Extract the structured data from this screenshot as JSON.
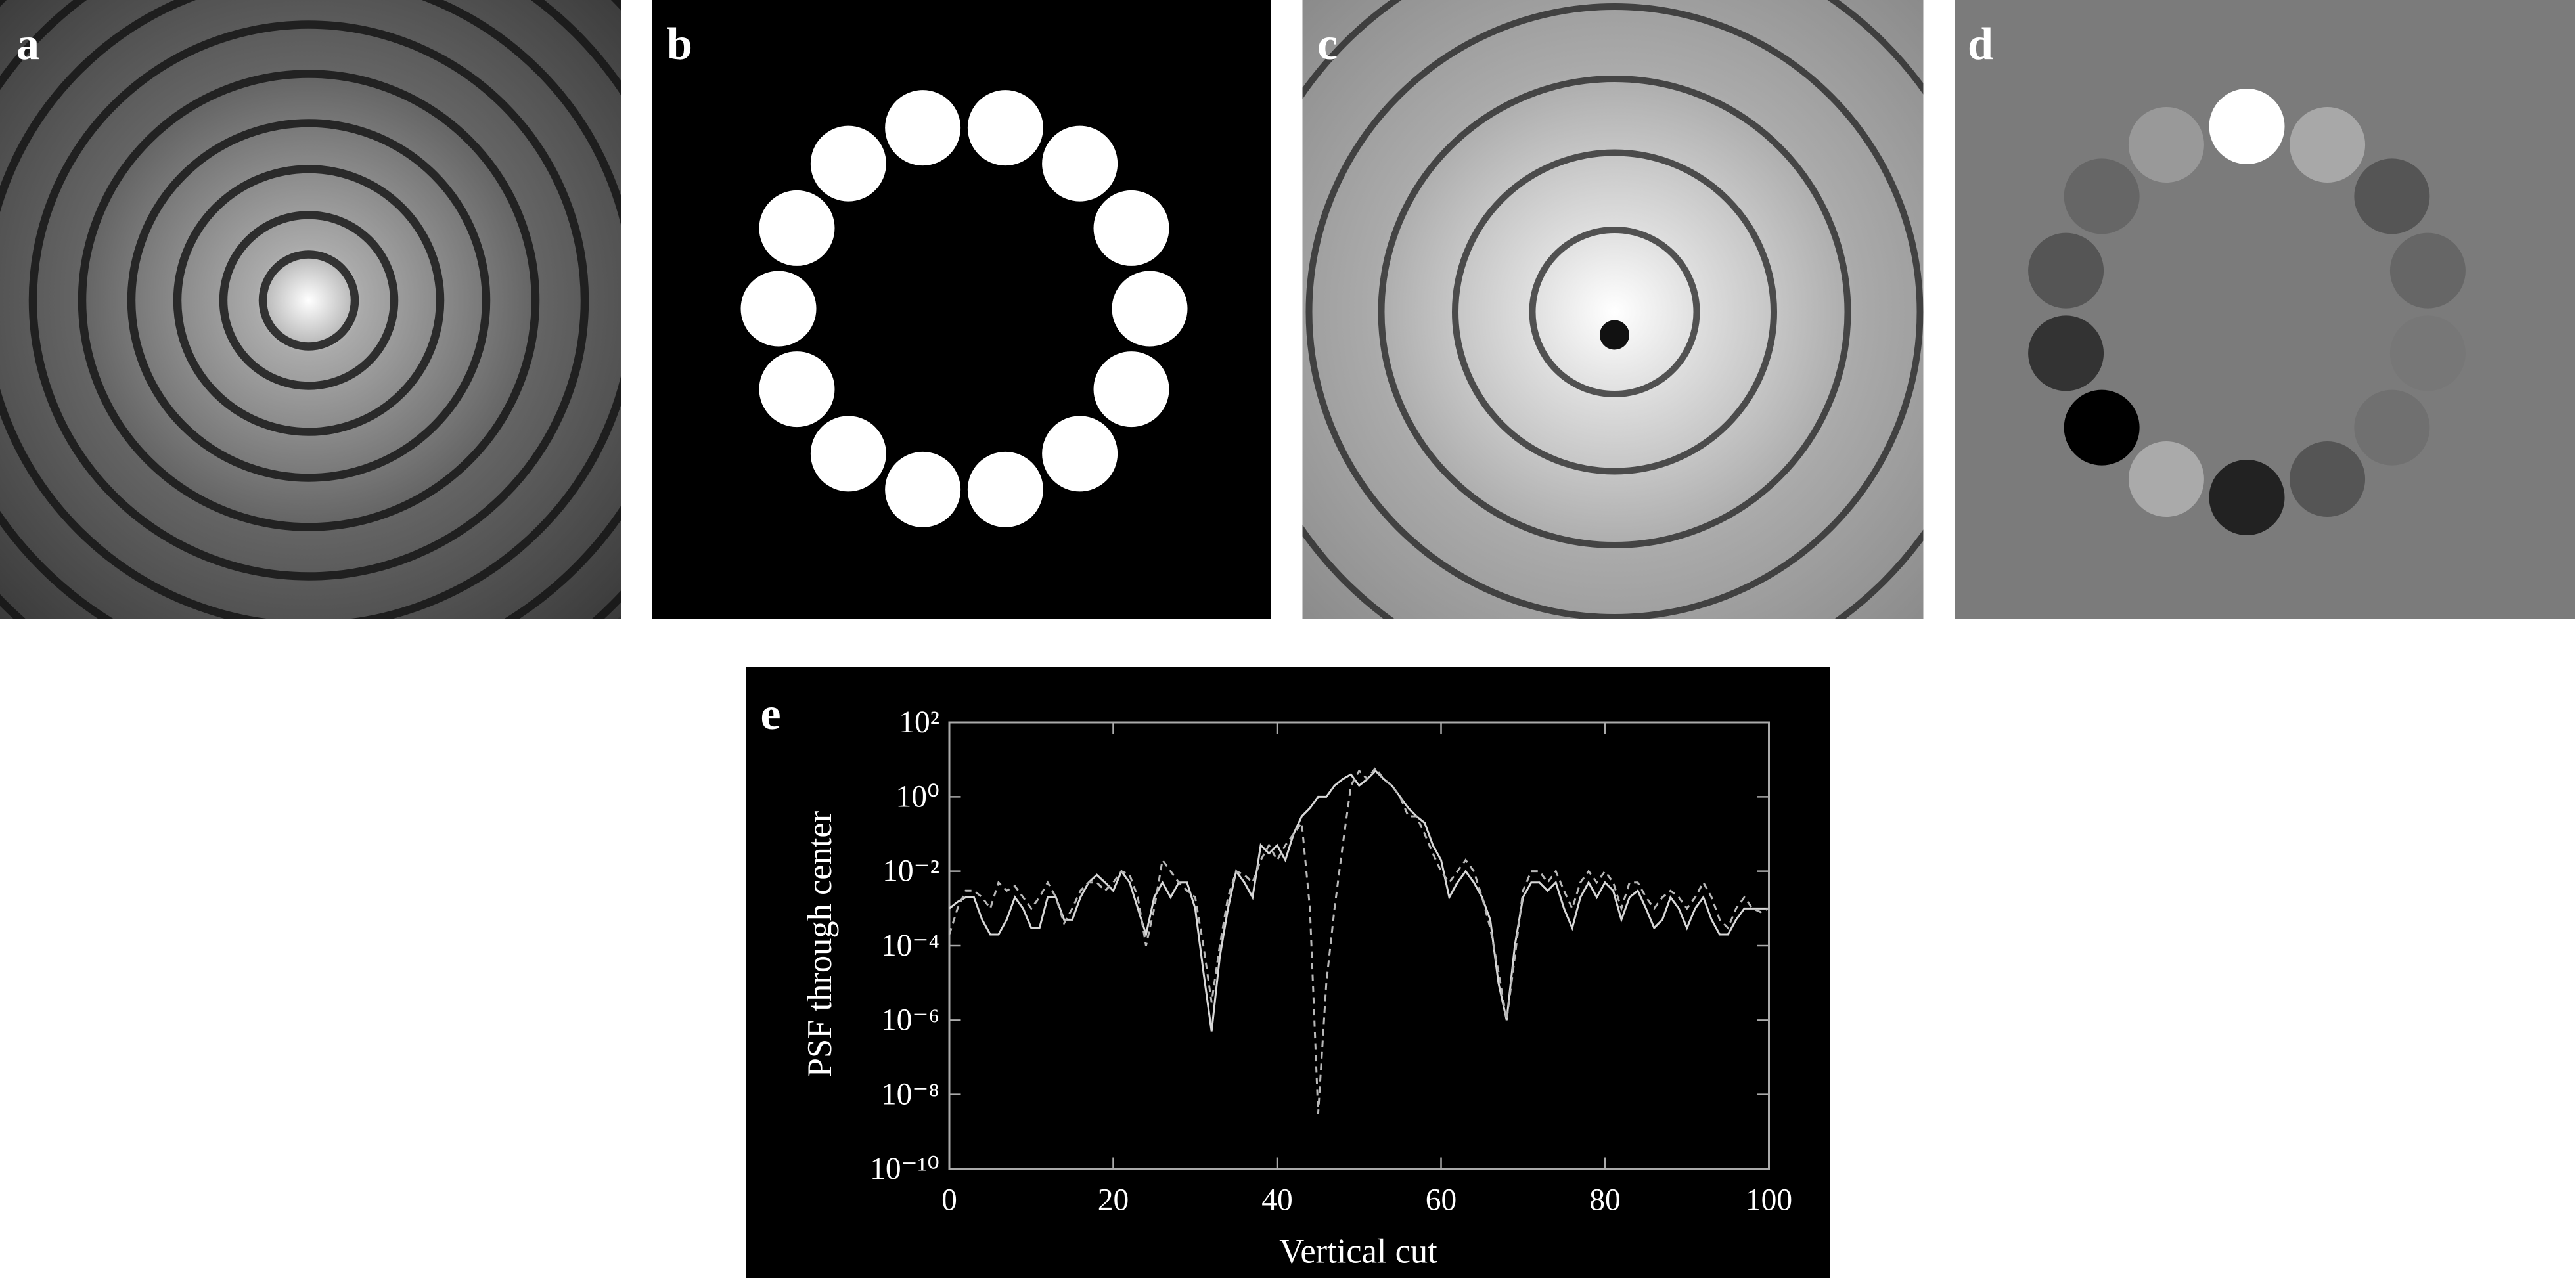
{
  "panels": {
    "a": "a",
    "b": "b",
    "c": "c",
    "d": "d",
    "e": "e"
  },
  "chart_data": {
    "type": "line",
    "xlabel": "Vertical cut",
    "ylabel": "PSF through center",
    "xlim": [
      0,
      100
    ],
    "xticks": [
      0,
      20,
      40,
      60,
      80,
      100
    ],
    "ylim": [
      1e-10,
      100
    ],
    "log_y": true,
    "grid": false,
    "yticks": [
      {
        "value": 1e-10,
        "label": "10⁻¹⁰"
      },
      {
        "value": 1e-08,
        "label": "10⁻⁸"
      },
      {
        "value": 1e-06,
        "label": "10⁻⁶"
      },
      {
        "value": 0.0001,
        "label": "10⁻⁴"
      },
      {
        "value": 0.01,
        "label": "10⁻²"
      },
      {
        "value": 1,
        "label": "10⁰"
      },
      {
        "value": 100,
        "label": "10²"
      }
    ],
    "x": [
      0,
      1,
      2,
      3,
      4,
      5,
      6,
      7,
      8,
      9,
      10,
      11,
      12,
      13,
      14,
      15,
      16,
      17,
      18,
      19,
      20,
      21,
      22,
      23,
      24,
      25,
      26,
      27,
      28,
      29,
      30,
      31,
      32,
      33,
      34,
      35,
      36,
      37,
      38,
      39,
      40,
      41,
      42,
      43,
      44,
      45,
      46,
      47,
      48,
      49,
      50,
      51,
      52,
      53,
      54,
      55,
      56,
      57,
      58,
      59,
      60,
      61,
      62,
      63,
      64,
      65,
      66,
      67,
      68,
      69,
      70,
      71,
      72,
      73,
      74,
      75,
      76,
      77,
      78,
      79,
      80,
      81,
      82,
      83,
      84,
      85,
      86,
      87,
      88,
      89,
      90,
      91,
      92,
      93,
      94,
      95,
      96,
      97,
      98,
      99,
      100
    ],
    "series": [
      {
        "color": "#d8d8d8",
        "linestyle": "solid",
        "values": [
          0.001,
          0.0015,
          0.002,
          0.002,
          0.0005,
          0.0002,
          0.0002,
          0.0005,
          0.002,
          0.001,
          0.0003,
          0.0003,
          0.002,
          0.002,
          0.0005,
          0.0005,
          0.002,
          0.005,
          0.008,
          0.005,
          0.003,
          0.01,
          0.005,
          0.001,
          0.0002,
          0.002,
          0.005,
          0.002,
          0.005,
          0.005,
          0.001,
          2e-05,
          5e-07,
          5e-05,
          0.001,
          0.01,
          0.005,
          0.002,
          0.05,
          0.03,
          0.05,
          0.02,
          0.1,
          0.3,
          0.5,
          1,
          1,
          2,
          3,
          4,
          2,
          3,
          5,
          3,
          2,
          1,
          0.5,
          0.3,
          0.2,
          0.05,
          0.02,
          0.002,
          0.005,
          0.01,
          0.005,
          0.002,
          0.0005,
          1e-05,
          1e-06,
          0.0001,
          0.002,
          0.005,
          0.005,
          0.003,
          0.005,
          0.001,
          0.0003,
          0.002,
          0.005,
          0.002,
          0.005,
          0.003,
          0.0005,
          0.002,
          0.003,
          0.001,
          0.0003,
          0.0005,
          0.002,
          0.001,
          0.0003,
          0.001,
          0.002,
          0.0005,
          0.0002,
          0.0002,
          0.0005,
          0.001,
          0.001,
          0.001,
          0.001
        ]
      },
      {
        "color": "#b8b8b8",
        "linestyle": "dashed",
        "values": [
          0.0002,
          0.001,
          0.003,
          0.003,
          0.002,
          0.001,
          0.005,
          0.003,
          0.004,
          0.002,
          0.001,
          0.002,
          0.005,
          0.002,
          0.0004,
          0.001,
          0.003,
          0.005,
          0.005,
          0.003,
          0.005,
          0.01,
          0.008,
          0.002,
          0.0001,
          0.001,
          0.02,
          0.01,
          0.005,
          0.003,
          0.002,
          0.0001,
          3e-06,
          0.0001,
          0.002,
          0.01,
          0.008,
          0.005,
          0.02,
          0.05,
          0.02,
          0.05,
          0.1,
          0.2,
          0.001,
          3e-09,
          1e-05,
          0.001,
          0.05,
          2,
          5,
          3,
          6,
          3,
          2,
          1,
          0.3,
          0.3,
          0.1,
          0.03,
          0.01,
          0.005,
          0.01,
          0.02,
          0.01,
          0.002,
          0.0003,
          2e-05,
          1e-06,
          5e-05,
          0.003,
          0.01,
          0.01,
          0.005,
          0.01,
          0.003,
          0.001,
          0.005,
          0.01,
          0.005,
          0.01,
          0.005,
          0.001,
          0.005,
          0.005,
          0.002,
          0.001,
          0.002,
          0.003,
          0.002,
          0.001,
          0.002,
          0.005,
          0.002,
          0.0005,
          0.0003,
          0.001,
          0.002,
          0.001,
          0.0008,
          0.001
        ]
      }
    ]
  }
}
